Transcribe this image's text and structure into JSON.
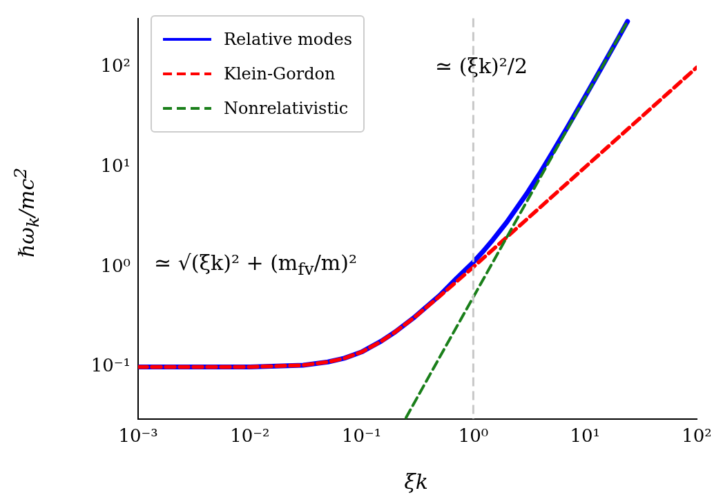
{
  "chart_data": {
    "type": "line",
    "xlabel": "ξk",
    "ylabel": "ℏω$_{k}$/mc$^{2}$",
    "log": "xy",
    "legend": "top left",
    "xlim": [
      0.001,
      100
    ],
    "ylim": [
      0.03,
      310
    ],
    "xticks": [
      {
        "value": 0.001,
        "label": "10⁻³"
      },
      {
        "value": 0.01,
        "label": "10⁻²"
      },
      {
        "value": 0.1,
        "label": "10⁻¹"
      },
      {
        "value": 1,
        "label": "10⁰"
      },
      {
        "value": 10,
        "label": "10¹"
      },
      {
        "value": 100,
        "label": "10²"
      }
    ],
    "yticks": [
      {
        "value": 0.1,
        "label": "10⁻¹"
      },
      {
        "value": 1,
        "label": "10⁰"
      },
      {
        "value": 10,
        "label": "10¹"
      },
      {
        "value": 100,
        "label": "10²"
      }
    ],
    "series": [
      {
        "name": "Relative modes",
        "color": "#0000ff",
        "line_style": "solid",
        "x": [
          0.001,
          0.01,
          0.03,
          0.05,
          0.07,
          0.1,
          0.15,
          0.2,
          0.3,
          0.5,
          0.7,
          1,
          1.2,
          1.5,
          2,
          3,
          4,
          5,
          7,
          10,
          15,
          20,
          24
        ],
        "values": [
          0.1,
          0.1,
          0.104,
          0.112,
          0.122,
          0.141,
          0.181,
          0.224,
          0.317,
          0.52,
          0.76,
          1.12,
          1.4,
          1.88,
          2.83,
          5.41,
          8.94,
          13.5,
          25.5,
          51,
          113,
          200,
          289
        ]
      },
      {
        "name": "Klein-Gordon",
        "color": "#ff0000",
        "line_style": "dashed",
        "x": [
          0.001,
          0.01,
          0.03,
          0.05,
          0.07,
          0.1,
          0.15,
          0.2,
          0.3,
          0.5,
          1,
          2,
          5,
          10,
          30,
          100
        ],
        "values": [
          0.1,
          0.1,
          0.104,
          0.112,
          0.122,
          0.141,
          0.18,
          0.224,
          0.316,
          0.51,
          1,
          2,
          5,
          10,
          30,
          100
        ]
      },
      {
        "name": "Nonrelativistic",
        "color": "#1a7f1a",
        "line_style": "dashed",
        "x": [
          0.25,
          0.5,
          1,
          2,
          5,
          10,
          24
        ],
        "values": [
          0.031,
          0.125,
          0.5,
          2,
          12.5,
          50,
          288
        ]
      }
    ],
    "ref_lines": [
      {
        "axis": "x",
        "value": 1,
        "color": "#c8c8c8",
        "line_style": "dashed"
      }
    ],
    "annotations": [
      "≃ (ξk)²/2",
      "≃ √(ξk)² + (m$_{fv}$/m)²"
    ]
  }
}
